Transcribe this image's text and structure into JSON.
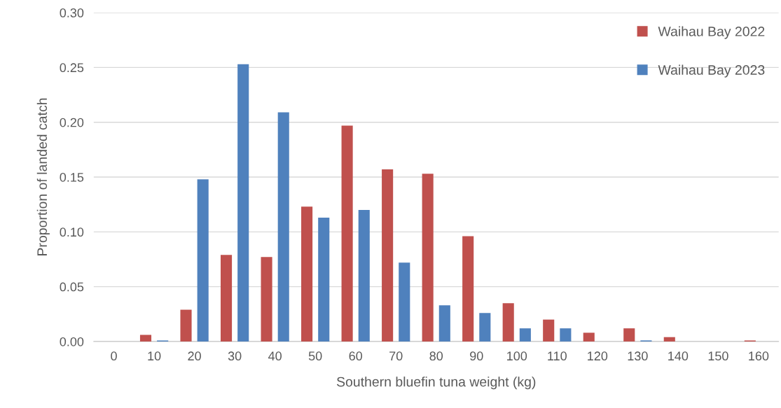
{
  "chart_data": {
    "type": "bar",
    "xlabel": "Southern bluefin tuna weight (kg)",
    "ylabel": "Proportion of landed catch",
    "categories": [
      "0",
      "10",
      "20",
      "30",
      "40",
      "50",
      "60",
      "70",
      "80",
      "90",
      "100",
      "110",
      "120",
      "130",
      "140",
      "150",
      "160"
    ],
    "series": [
      {
        "name": "Waihau Bay 2022",
        "color": "#c0504d",
        "values": [
          0,
          0.006,
          0.029,
          0.079,
          0.077,
          0.123,
          0.197,
          0.157,
          0.153,
          0.096,
          0.035,
          0.02,
          0.008,
          0.012,
          0.004,
          0,
          0.001
        ]
      },
      {
        "name": "Waihau Bay 2023",
        "color": "#4f81bd",
        "values": [
          0,
          0.001,
          0.148,
          0.253,
          0.209,
          0.113,
          0.12,
          0.072,
          0.033,
          0.026,
          0.012,
          0.012,
          0,
          0.001,
          0,
          0,
          0
        ]
      }
    ],
    "ylim": [
      0,
      0.3
    ],
    "yticks": [
      {
        "value": 0,
        "label": "0.00"
      },
      {
        "value": 0.05,
        "label": "0.05"
      },
      {
        "value": 0.1,
        "label": "0.10"
      },
      {
        "value": 0.15,
        "label": "0.15"
      },
      {
        "value": 0.2,
        "label": "0.20"
      },
      {
        "value": 0.25,
        "label": "0.25"
      },
      {
        "value": 0.3,
        "label": "0.30"
      }
    ],
    "grid": "y",
    "legend": "top right"
  }
}
